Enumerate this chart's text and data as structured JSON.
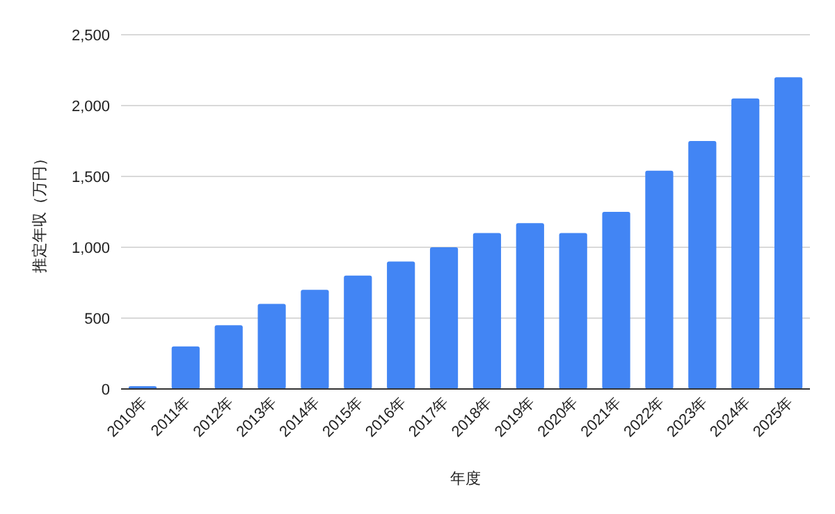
{
  "chart_data": {
    "type": "bar",
    "xlabel": "年度",
    "ylabel": "推定年収（万円）",
    "categories": [
      "2010年",
      "2011年",
      "2012年",
      "2013年",
      "2014年",
      "2015年",
      "2016年",
      "2017年",
      "2018年",
      "2019年",
      "2020年",
      "2021年",
      "2022年",
      "2023年",
      "2024年",
      "2025年"
    ],
    "values": [
      20,
      300,
      450,
      600,
      700,
      800,
      900,
      1000,
      1100,
      1170,
      1100,
      1250,
      1540,
      1750,
      2050,
      2200
    ],
    "color": "#4285f4",
    "ylim": [
      0,
      2500
    ],
    "yticks": [
      {
        "value": 0,
        "label": "0"
      },
      {
        "value": 500,
        "label": "500"
      },
      {
        "value": 1000,
        "label": "1,000"
      },
      {
        "value": 1500,
        "label": "1,500"
      },
      {
        "value": 2000,
        "label": "2,000"
      },
      {
        "value": 2500,
        "label": "2,500"
      }
    ],
    "grid": "y"
  }
}
